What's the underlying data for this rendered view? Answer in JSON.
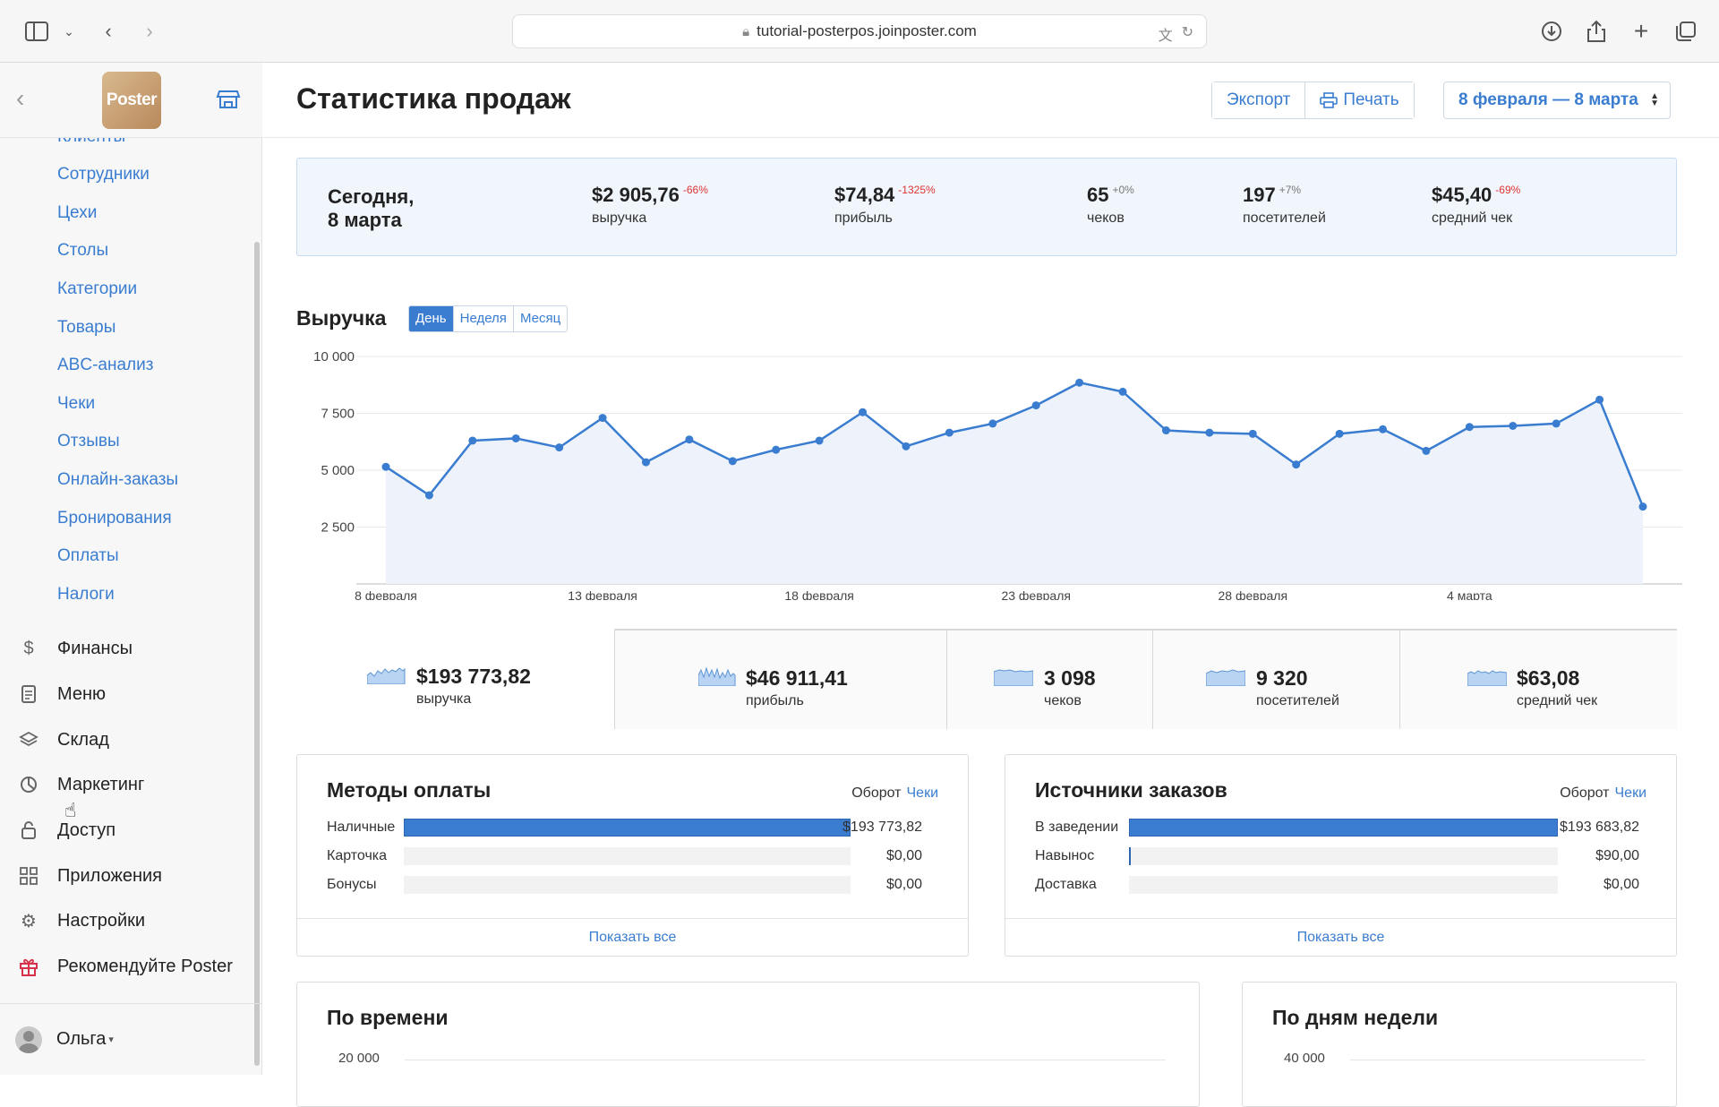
{
  "browser": {
    "url": "tutorial-posterpos.joinposter.com"
  },
  "sidebar": {
    "logo_text": "Poster",
    "partial_item": "Клиенты",
    "sub_items": [
      "Сотрудники",
      "Цехи",
      "Столы",
      "Категории",
      "Товары",
      "ABC-анализ",
      "Чеки",
      "Отзывы",
      "Онлайн-заказы",
      "Бронирования",
      "Оплаты",
      "Налоги"
    ],
    "main_items": [
      {
        "label": "Финансы",
        "icon": "dollar-icon"
      },
      {
        "label": "Меню",
        "icon": "document-icon"
      },
      {
        "label": "Склад",
        "icon": "layers-icon"
      },
      {
        "label": "Маркетинг",
        "icon": "pie-icon"
      },
      {
        "label": "Доступ",
        "icon": "lock-icon"
      },
      {
        "label": "Приложения",
        "icon": "grid-icon"
      },
      {
        "label": "Настройки",
        "icon": "gear-icon"
      },
      {
        "label": "Рекомендуйте Poster",
        "icon": "gift-icon"
      }
    ],
    "user_name": "Ольга"
  },
  "header": {
    "title": "Статистика продаж",
    "export_label": "Экспорт",
    "print_label": "Печать",
    "date_range": "8 февраля — 8 марта"
  },
  "today": {
    "label_line1": "Сегодня,",
    "label_line2": "8 марта",
    "kpis": [
      {
        "value": "$2 905,76",
        "delta": "-66%",
        "label": "выручка",
        "trend": "neg"
      },
      {
        "value": "$74,84",
        "delta": "-1325%",
        "label": "прибыль",
        "trend": "neg"
      },
      {
        "value": "65",
        "delta": "+0%",
        "label": "чеков",
        "trend": "pos"
      },
      {
        "value": "197",
        "delta": "+7%",
        "label": "посетителей",
        "trend": "pos"
      },
      {
        "value": "$45,40",
        "delta": "-69%",
        "label": "средний чек",
        "trend": "neg"
      }
    ]
  },
  "revenue": {
    "title": "Выручка",
    "tabs": [
      "День",
      "Неделя",
      "Месяц"
    ],
    "active_tab": "День"
  },
  "chart_data": {
    "type": "area",
    "title": "Выручка",
    "x_tick_labels": [
      "8 февраля",
      "13 февраля",
      "18 февраля",
      "23 февраля",
      "28 февраля",
      "4 марта"
    ],
    "y_tick_labels": [
      "10 000",
      "7 500",
      "5 000",
      "2 500"
    ],
    "ylim": [
      0,
      10000
    ],
    "y_ticks": [
      2500,
      5000,
      7500,
      10000
    ],
    "color": "#3a7dd0",
    "grid": true,
    "values": [
      5150,
      3900,
      6300,
      6400,
      6000,
      7300,
      5350,
      6350,
      5400,
      5900,
      6300,
      7550,
      6050,
      6650,
      7050,
      7850,
      8850,
      8450,
      6750,
      6650,
      6600,
      5250,
      6600,
      6800,
      5850,
      6900,
      6950,
      7050,
      8100,
      3400
    ]
  },
  "totals": [
    {
      "value": "$193 773,82",
      "label": "выручка"
    },
    {
      "value": "$46 911,41",
      "label": "прибыль"
    },
    {
      "value": "3 098",
      "label": "чеков"
    },
    {
      "value": "9 320",
      "label": "посетителей"
    },
    {
      "value": "$63,08",
      "label": "средний чек"
    }
  ],
  "payments": {
    "title": "Методы оплаты",
    "opt_turnover": "Оборот",
    "opt_checks": "Чеки",
    "rows": [
      {
        "name": "Наличные",
        "value": "$193 773,82",
        "fraction": 1.0
      },
      {
        "name": "Карточка",
        "value": "$0,00",
        "fraction": 0.0
      },
      {
        "name": "Бонусы",
        "value": "$0,00",
        "fraction": 0.0
      }
    ],
    "show_all": "Показать все"
  },
  "sources": {
    "title": "Источники заказов",
    "opt_turnover": "Оборот",
    "opt_checks": "Чеки",
    "rows": [
      {
        "name": "В заведении",
        "value": "$193 683,82",
        "fraction": 1.0
      },
      {
        "name": "Навынос",
        "value": "$90,00",
        "fraction": 0.0005
      },
      {
        "name": "Доставка",
        "value": "$0,00",
        "fraction": 0.0
      }
    ],
    "show_all": "Показать все"
  },
  "by_time": {
    "title": "По времени",
    "y_top": "20 000"
  },
  "by_weekday": {
    "title": "По дням недели",
    "y_top": "40 000"
  }
}
